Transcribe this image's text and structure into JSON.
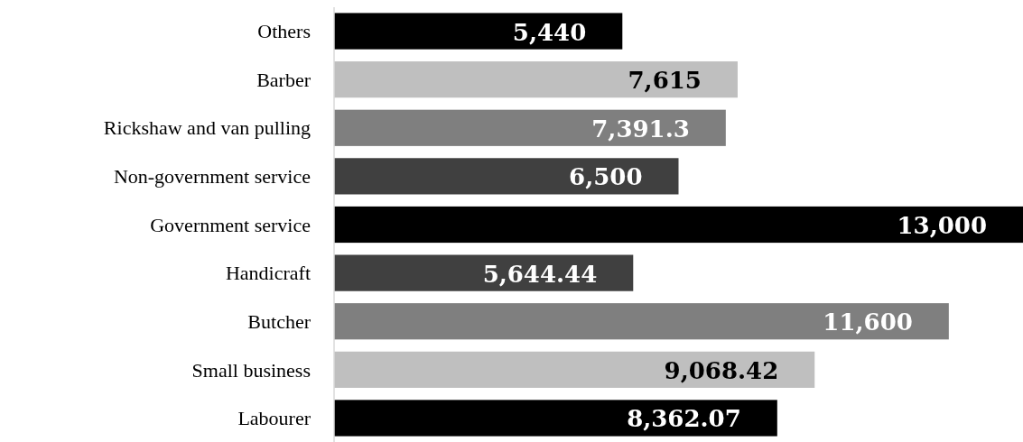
{
  "chart_data": {
    "type": "bar",
    "orientation": "horizontal",
    "categories": [
      "Others",
      "Barber",
      "Rickshaw and van pulling",
      "Non-government service",
      "Government service",
      "Handicraft",
      "Butcher",
      "Small business",
      "Labourer"
    ],
    "values": [
      5440,
      7615,
      7391.3,
      6500,
      13000,
      5644.44,
      11600,
      9068.42,
      8362.07
    ],
    "colors": [
      "#000000",
      "#bfbfbf",
      "#7f7f7f",
      "#404040",
      "#000000",
      "#404040",
      "#7f7f7f",
      "#bfbfbf",
      "#000000"
    ],
    "value_labels": [
      "5,440",
      "7,615",
      "7,391.3",
      "6,500",
      "13,000",
      "5,644.44",
      "11,600",
      "9,068.42",
      "8,362.07"
    ],
    "xlim": [
      0,
      13000
    ],
    "tick_labels": "y"
  }
}
